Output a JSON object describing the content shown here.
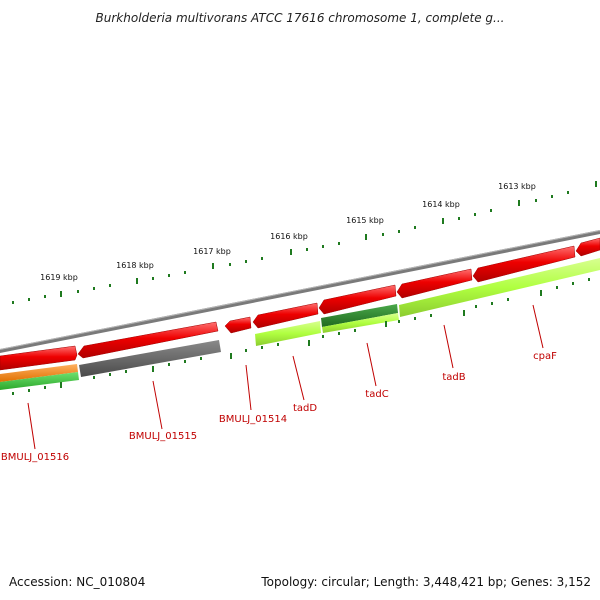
{
  "header": {
    "title": "Burkholderia multivorans ATCC 17616 chromosome 1, complete g..."
  },
  "footer": {
    "accession": "Accession: NC_010804",
    "topology": "Topology: circular; Length: 3,448,421 bp; Genes: 3,152"
  },
  "map": {
    "tick_labels": [
      "1619 kbp",
      "1618 kbp",
      "1617 kbp",
      "1616 kbp",
      "1615 kbp",
      "1614 kbp",
      "1613 kbp"
    ],
    "genes": [
      "BMULJ_01516",
      "BMULJ_01515",
      "BMULJ_01514",
      "tadD",
      "tadC",
      "tadB",
      "cpaF"
    ],
    "colors": {
      "backbone": "#8a8a8a",
      "cds": "#ee0000",
      "cog_light_green": "#b0ff40",
      "cog_dark_green": "#2e8b2e",
      "cog_gray": "#5e5e5e",
      "cog_orange": "#ff8c1a",
      "cog_green": "#3cc43c",
      "ticks": "#1f7a1f",
      "label": "#c00000"
    }
  }
}
